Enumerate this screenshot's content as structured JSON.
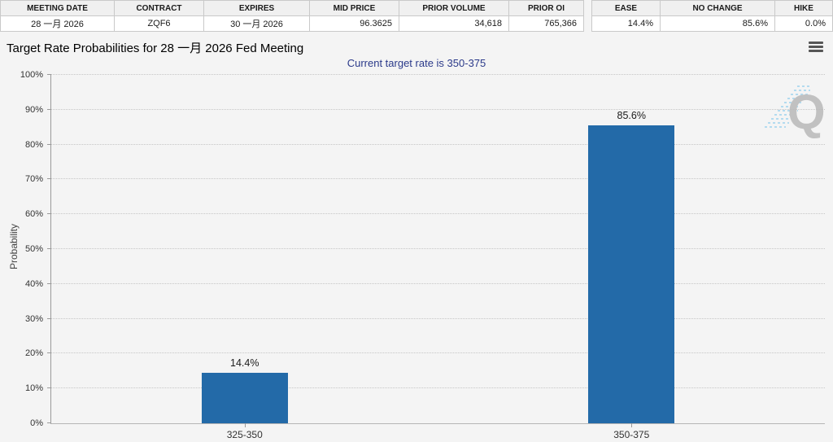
{
  "summary_table": {
    "columns": [
      {
        "label": "MEETING DATE",
        "value": "28 一月 2026"
      },
      {
        "label": "CONTRACT",
        "value": "ZQF6"
      },
      {
        "label": "EXPIRES",
        "value": "30 一月 2026"
      },
      {
        "label": "MID PRICE",
        "value": "96.3625"
      },
      {
        "label": "PRIOR VOLUME",
        "value": "34,618"
      },
      {
        "label": "PRIOR OI",
        "value": "765,366"
      }
    ]
  },
  "probability_table": {
    "columns": [
      {
        "label": "EASE",
        "value": "14.4%"
      },
      {
        "label": "NO CHANGE",
        "value": "85.6%"
      },
      {
        "label": "HIKE",
        "value": "0.0%"
      }
    ]
  },
  "header": {
    "title": "Target Rate Probabilities for 28 一月 2026 Fed Meeting",
    "subtitle": "Current target rate is 350-375",
    "menu_icon": "hamburger-icon"
  },
  "watermark": {
    "letter": "Q"
  },
  "chart_data": {
    "type": "bar",
    "title": "Target Rate Probabilities for 28 一月 2026 Fed Meeting",
    "subtitle": "Current target rate is 350-375",
    "categories": [
      "325-350",
      "350-375"
    ],
    "values": [
      14.4,
      85.6
    ],
    "value_labels": [
      "14.4%",
      "85.6%"
    ],
    "xlabel": "",
    "ylabel": "Probability",
    "ylim": [
      0,
      100
    ],
    "ytick_step": 10,
    "ytick_suffix": "%",
    "grid": "horizontal-dotted",
    "legend": "none",
    "bar_color": "#236aa8"
  }
}
